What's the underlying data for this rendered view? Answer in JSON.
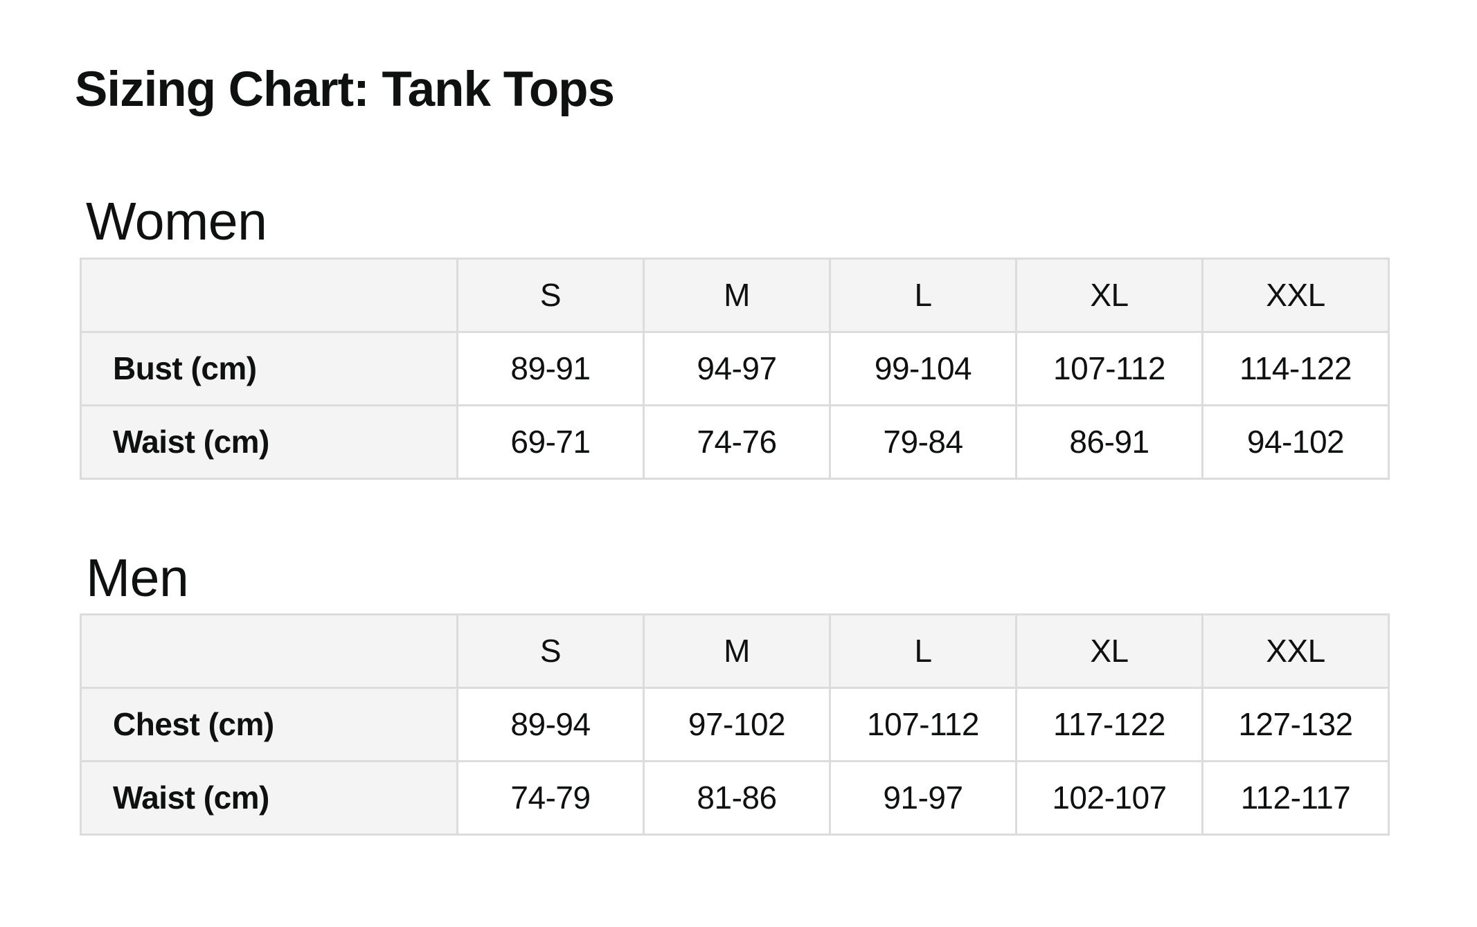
{
  "page": {
    "title": "Sizing Chart: Tank Tops"
  },
  "colors": {
    "background": "#ffffff",
    "table_header_bg": "#f4f4f4",
    "table_border": "#dcdcdc",
    "text": "#0f1111"
  },
  "sections": [
    {
      "heading": "Women",
      "columns": [
        "S",
        "M",
        "L",
        "XL",
        "XXL"
      ],
      "rows": [
        {
          "label": "Bust (cm)",
          "values": [
            "89-91",
            "94-97",
            "99-104",
            "107-112",
            "114-122"
          ]
        },
        {
          "label": "Waist (cm)",
          "values": [
            "69-71",
            "74-76",
            "79-84",
            "86-91",
            "94-102"
          ]
        }
      ]
    },
    {
      "heading": "Men",
      "columns": [
        "S",
        "M",
        "L",
        "XL",
        "XXL"
      ],
      "rows": [
        {
          "label": "Chest (cm)",
          "values": [
            "89-94",
            "97-102",
            "107-112",
            "117-122",
            "127-132"
          ]
        },
        {
          "label": "Waist (cm)",
          "values": [
            "74-79",
            "81-86",
            "91-97",
            "102-107",
            "112-117"
          ]
        }
      ]
    }
  ],
  "chart_data": [
    {
      "type": "table",
      "title": "Women",
      "columns": [
        "",
        "S",
        "M",
        "L",
        "XL",
        "XXL"
      ],
      "rows": [
        [
          "Bust (cm)",
          "89-91",
          "94-97",
          "99-104",
          "107-112",
          "114-122"
        ],
        [
          "Waist (cm)",
          "69-71",
          "74-76",
          "79-84",
          "86-91",
          "94-102"
        ]
      ]
    },
    {
      "type": "table",
      "title": "Men",
      "columns": [
        "",
        "S",
        "M",
        "L",
        "XL",
        "XXL"
      ],
      "rows": [
        [
          "Chest (cm)",
          "89-94",
          "97-102",
          "107-112",
          "117-122",
          "127-132"
        ],
        [
          "Waist (cm)",
          "74-79",
          "81-86",
          "91-97",
          "102-107",
          "112-117"
        ]
      ]
    }
  ]
}
